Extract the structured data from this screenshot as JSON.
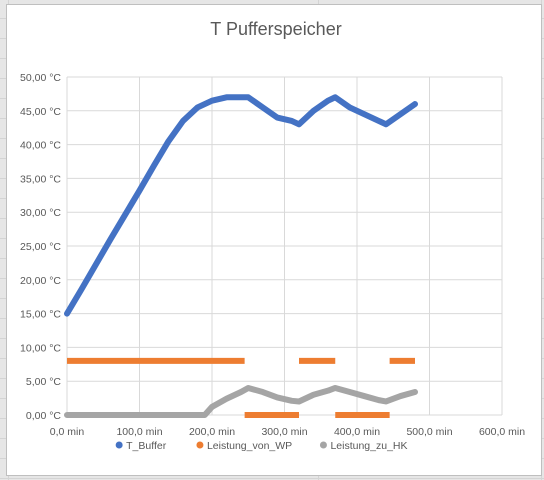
{
  "chart_data": {
    "type": "line",
    "title": "T Pufferspeicher",
    "xlabel": "",
    "ylabel": "",
    "xlim": [
      0,
      600
    ],
    "ylim": [
      0,
      50
    ],
    "x_ticks": [
      "0,0 min",
      "100,0 min",
      "200,0 min",
      "300,0 min",
      "400,0 min",
      "500,0 min",
      "600,0 min"
    ],
    "y_ticks": [
      "0,00 °C",
      "5,00 °C",
      "10,00 °C",
      "15,00 °C",
      "20,00 °C",
      "25,00 °C",
      "30,00 °C",
      "35,00 °C",
      "40,00 °C",
      "45,00 °C",
      "50,00 °C"
    ],
    "grid": true,
    "legend_position": "bottom",
    "series": [
      {
        "name": "T_Buffer",
        "color": "#4472C4",
        "x": [
          0,
          20,
          40,
          60,
          80,
          100,
          120,
          140,
          160,
          180,
          200,
          220,
          240,
          250,
          270,
          290,
          310,
          320,
          340,
          360,
          370,
          390,
          410,
          430,
          440,
          460,
          480
        ],
        "y": [
          15.0,
          18.6,
          22.3,
          26.0,
          29.6,
          33.2,
          36.9,
          40.5,
          43.5,
          45.5,
          46.5,
          47.0,
          47.0,
          47.0,
          45.5,
          44.0,
          43.5,
          43.0,
          45.0,
          46.5,
          47.0,
          45.5,
          44.5,
          43.5,
          43.0,
          44.5,
          46.0
        ]
      },
      {
        "name": "Leistung_von_WP",
        "color": "#ED7D31",
        "segments": [
          {
            "x": [
              0,
              245
            ],
            "y": [
              8.0,
              8.0
            ]
          },
          {
            "x": [
              245,
              320
            ],
            "y": [
              0.0,
              0.0
            ]
          },
          {
            "x": [
              320,
              370
            ],
            "y": [
              8.0,
              8.0
            ]
          },
          {
            "x": [
              370,
              445
            ],
            "y": [
              0.0,
              0.0
            ]
          },
          {
            "x": [
              445,
              480
            ],
            "y": [
              8.0,
              8.0
            ]
          }
        ]
      },
      {
        "name": "Leistung_zu_HK",
        "color": "#A5A5A5",
        "x": [
          0,
          40,
          80,
          120,
          160,
          190,
          200,
          220,
          240,
          250,
          270,
          290,
          310,
          320,
          340,
          360,
          370,
          390,
          410,
          430,
          440,
          460,
          480
        ],
        "y": [
          0.0,
          0.0,
          0.0,
          0.0,
          0.0,
          0.0,
          1.2,
          2.4,
          3.4,
          4.0,
          3.4,
          2.6,
          2.1,
          2.0,
          3.0,
          3.6,
          4.0,
          3.4,
          2.8,
          2.2,
          2.0,
          2.8,
          3.4
        ]
      }
    ]
  }
}
